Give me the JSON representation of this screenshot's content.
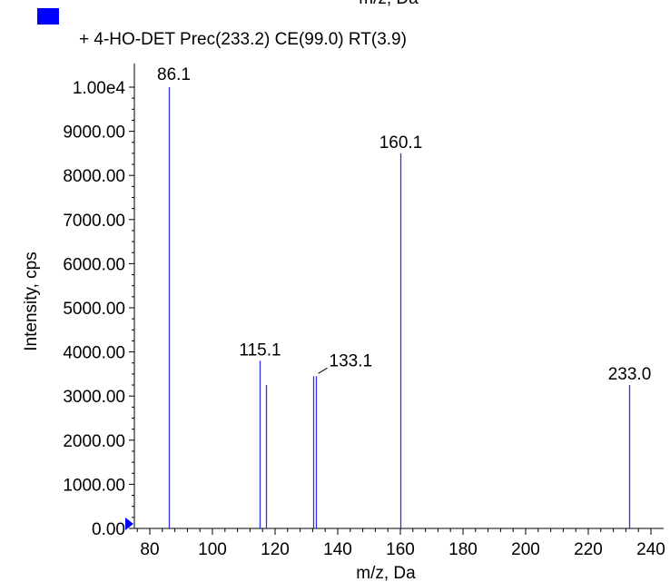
{
  "header": {
    "clipped_title": "m/z, Da"
  },
  "chart_data": {
    "type": "bar",
    "legend": {
      "label": "+ 4-HO-DET Prec(233.2) CE(99.0) RT(3.9)",
      "placement": "top-left",
      "swatch_color": "#0000ff"
    },
    "xlabel": "m/z, Da",
    "ylabel": "Intensity, cps",
    "xlim": [
      75,
      243
    ],
    "ylim": [
      0,
      10500
    ],
    "x_ticks": [
      80,
      100,
      120,
      140,
      160,
      180,
      200,
      220,
      240
    ],
    "x_tick_labels": [
      "80",
      "100",
      "120",
      "140",
      "160",
      "180",
      "200",
      "220",
      "240"
    ],
    "y_ticks": [
      0,
      1000,
      2000,
      3000,
      4000,
      5000,
      6000,
      7000,
      8000,
      9000,
      10000
    ],
    "y_tick_labels": [
      "0.00",
      "1000.00",
      "2000.00",
      "3000.00",
      "4000.00",
      "5000.00",
      "6000.00",
      "7000.00",
      "8000.00",
      "9000.00",
      "1.00e4"
    ],
    "grid": false,
    "line_color": "#3030e0",
    "peaks": [
      {
        "mz": 86.1,
        "intensity": 10000,
        "label": "86.1"
      },
      {
        "mz": 115.1,
        "intensity": 3800,
        "label": "115.1"
      },
      {
        "mz": 117.0,
        "intensity": 3250,
        "label": ""
      },
      {
        "mz": 132.3,
        "intensity": 3450,
        "label": ""
      },
      {
        "mz": 133.1,
        "intensity": 3450,
        "label": "133.1"
      },
      {
        "mz": 160.1,
        "intensity": 8500,
        "label": "160.1"
      },
      {
        "mz": 233.0,
        "intensity": 3250,
        "label": "233.0"
      }
    ],
    "precursor_marker_color": "#0000ff"
  }
}
